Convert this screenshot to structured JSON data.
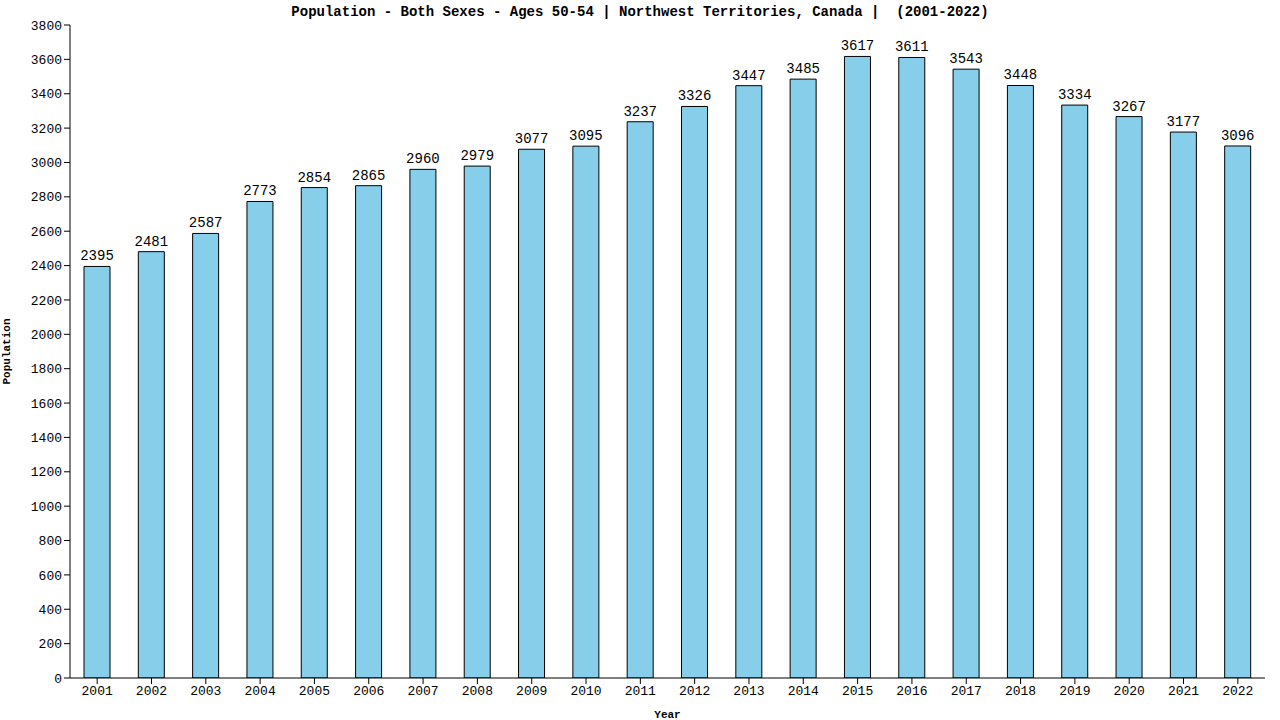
{
  "chart_data": {
    "type": "bar",
    "title": "Population - Both Sexes - Ages 50-54 | Northwest Territories, Canada |  (2001-2022)",
    "x_label": "Year",
    "y_label": "Population",
    "categories": [
      "2001",
      "2002",
      "2003",
      "2004",
      "2005",
      "2006",
      "2007",
      "2008",
      "2009",
      "2010",
      "2011",
      "2012",
      "2013",
      "2014",
      "2015",
      "2016",
      "2017",
      "2018",
      "2019",
      "2020",
      "2021",
      "2022"
    ],
    "values": [
      2395,
      2481,
      2587,
      2773,
      2854,
      2865,
      2960,
      2979,
      3077,
      3095,
      3237,
      3326,
      3447,
      3485,
      3617,
      3611,
      3543,
      3448,
      3334,
      3267,
      3177,
      3096
    ],
    "color": "#87ceeb",
    "ylim": [
      0,
      3800
    ],
    "yticks": [
      0,
      200,
      400,
      600,
      800,
      1000,
      1200,
      1400,
      1600,
      1800,
      2000,
      2200,
      2400,
      2600,
      2800,
      3000,
      3200,
      3400,
      3600,
      3800
    ],
    "grid": false,
    "data_labels": true
  }
}
